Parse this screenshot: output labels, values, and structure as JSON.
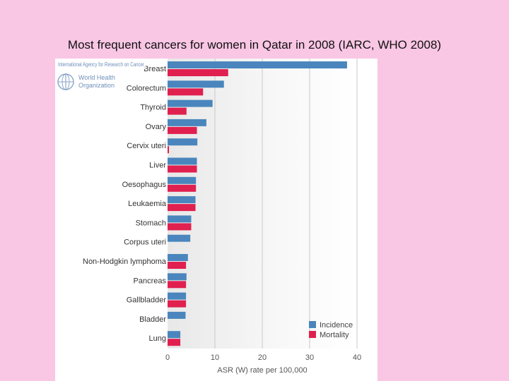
{
  "slide": {
    "title": "Most frequent cancers for women in Qatar in 2008 (IARC, WHO 2008)"
  },
  "logo": {
    "agency": "International Agency for Research on Cancer",
    "who_line1": "World Health",
    "who_line2": "Organization"
  },
  "chart_data": {
    "type": "bar",
    "orientation": "horizontal",
    "categories": [
      "Breast",
      "Colorectum",
      "Thyroid",
      "Ovary",
      "Cervix uteri",
      "Liver",
      "Oesophagus",
      "Leukaemia",
      "Stomach",
      "Corpus uteri",
      "Non-Hodgkin lymphoma",
      "Pancreas",
      "Gallbladder",
      "Bladder",
      "Lung"
    ],
    "series": [
      {
        "name": "Incidence",
        "color": "#4a86bd",
        "values": [
          37.9,
          11.9,
          9.5,
          8.2,
          6.3,
          6.2,
          6.0,
          5.9,
          5.0,
          4.8,
          4.3,
          4.0,
          3.9,
          3.8,
          2.7
        ]
      },
      {
        "name": "Mortality",
        "color": "#e0204f",
        "values": [
          12.8,
          7.5,
          4.0,
          6.2,
          0.3,
          6.2,
          6.0,
          5.9,
          5.0,
          0,
          3.9,
          3.9,
          3.9,
          0,
          2.7
        ]
      }
    ],
    "xlabel": "ASR (W) rate per 100,000",
    "ylabel": "",
    "xlim": [
      0,
      40
    ],
    "xticks": [
      0,
      10,
      20,
      30,
      40
    ],
    "grid": true,
    "legend_position": "bottom-right"
  }
}
